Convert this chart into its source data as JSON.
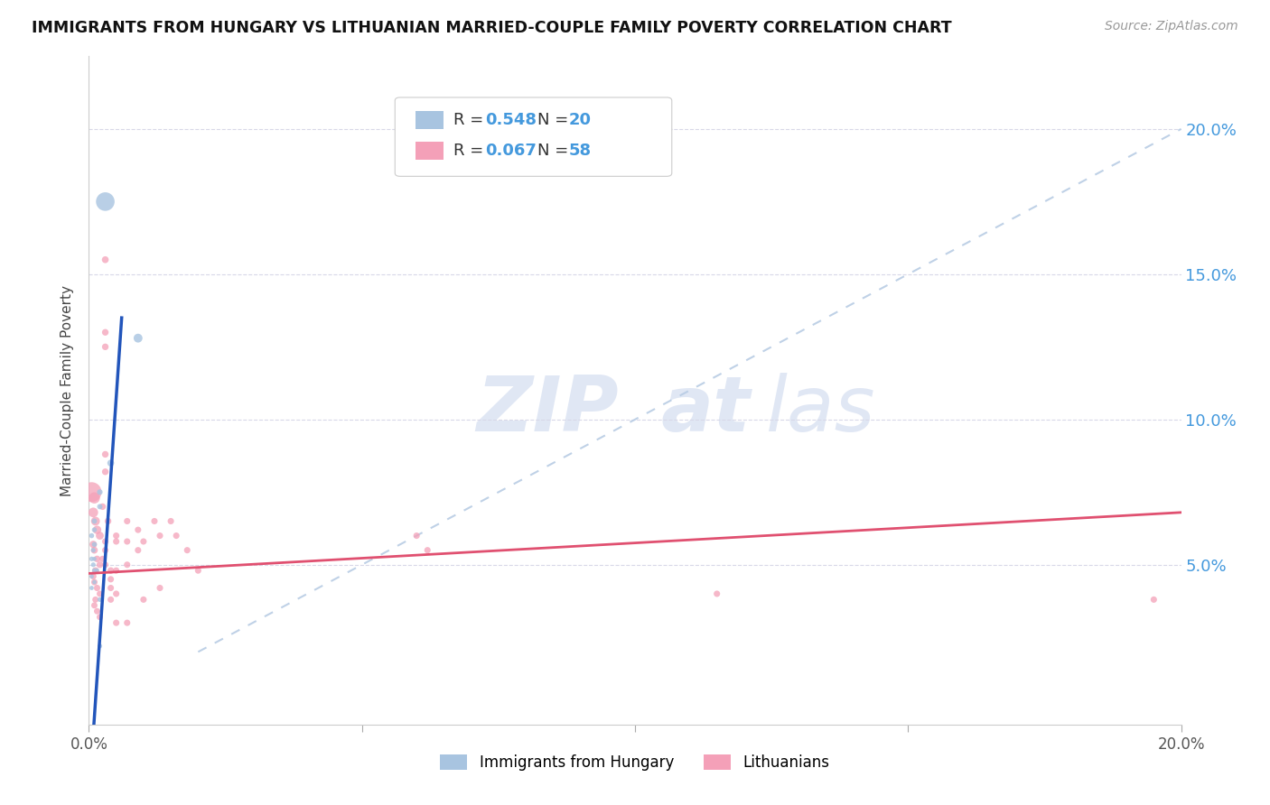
{
  "title": "IMMIGRANTS FROM HUNGARY VS LITHUANIAN MARRIED-COUPLE FAMILY POVERTY CORRELATION CHART",
  "source": "Source: ZipAtlas.com",
  "ylabel": "Married-Couple Family Poverty",
  "xlim": [
    0.0,
    0.2
  ],
  "ylim": [
    -0.005,
    0.225
  ],
  "yticks": [
    0.0,
    0.05,
    0.1,
    0.15,
    0.2
  ],
  "xticks": [
    0.0,
    0.05,
    0.1,
    0.15,
    0.2
  ],
  "xticklabels": [
    "0.0%",
    "",
    "",
    "",
    "20.0%"
  ],
  "right_yticks": [
    0.05,
    0.1,
    0.15,
    0.2
  ],
  "right_yticklabels": [
    "5.0%",
    "10.0%",
    "15.0%",
    "20.0%"
  ],
  "legend_r1": "0.548",
  "legend_n1": "20",
  "legend_r2": "0.067",
  "legend_n2": "58",
  "hungary_color": "#a8c4e0",
  "lithuanian_color": "#f4a0b8",
  "hungary_line_color": "#2255bb",
  "lithuanian_line_color": "#e05070",
  "diagonal_color": "#b8cce4",
  "watermark_zip_color": "#c8d8ee",
  "watermark_atlas_color": "#c0d4ee",
  "grid_color": "#d8d8e8",
  "background_color": "#ffffff",
  "hungary_points": [
    [
      0.003,
      0.175
    ],
    [
      0.009,
      0.128
    ],
    [
      0.004,
      0.085
    ],
    [
      0.002,
      0.075
    ],
    [
      0.002,
      0.07
    ],
    [
      0.001,
      0.065
    ],
    [
      0.001,
      0.062
    ],
    [
      0.0005,
      0.06
    ],
    [
      0.001,
      0.057
    ],
    [
      0.0008,
      0.055
    ],
    [
      0.0005,
      0.052
    ],
    [
      0.0008,
      0.05
    ],
    [
      0.001,
      0.048
    ],
    [
      0.0005,
      0.046
    ],
    [
      0.001,
      0.044
    ],
    [
      0.0005,
      0.042
    ],
    [
      0.001,
      0.052
    ],
    [
      0.0015,
      0.048
    ],
    [
      0.002,
      0.038
    ],
    [
      0.002,
      0.022
    ]
  ],
  "hungary_sizes": [
    220,
    50,
    30,
    20,
    18,
    18,
    16,
    16,
    16,
    14,
    14,
    14,
    14,
    12,
    12,
    12,
    12,
    12,
    14,
    14
  ],
  "lithuanian_points": [
    [
      0.0005,
      0.075
    ],
    [
      0.001,
      0.073
    ],
    [
      0.0008,
      0.068
    ],
    [
      0.0012,
      0.065
    ],
    [
      0.0015,
      0.062
    ],
    [
      0.002,
      0.06
    ],
    [
      0.0008,
      0.057
    ],
    [
      0.001,
      0.055
    ],
    [
      0.0015,
      0.052
    ],
    [
      0.002,
      0.05
    ],
    [
      0.0012,
      0.048
    ],
    [
      0.0008,
      0.046
    ],
    [
      0.001,
      0.044
    ],
    [
      0.0015,
      0.042
    ],
    [
      0.002,
      0.04
    ],
    [
      0.0012,
      0.038
    ],
    [
      0.001,
      0.036
    ],
    [
      0.0015,
      0.034
    ],
    [
      0.002,
      0.032
    ],
    [
      0.003,
      0.155
    ],
    [
      0.003,
      0.13
    ],
    [
      0.003,
      0.125
    ],
    [
      0.003,
      0.088
    ],
    [
      0.003,
      0.082
    ],
    [
      0.0025,
      0.07
    ],
    [
      0.0035,
      0.065
    ],
    [
      0.003,
      0.058
    ],
    [
      0.003,
      0.055
    ],
    [
      0.0025,
      0.052
    ],
    [
      0.003,
      0.05
    ],
    [
      0.004,
      0.048
    ],
    [
      0.004,
      0.045
    ],
    [
      0.004,
      0.042
    ],
    [
      0.004,
      0.038
    ],
    [
      0.005,
      0.06
    ],
    [
      0.005,
      0.058
    ],
    [
      0.005,
      0.048
    ],
    [
      0.005,
      0.04
    ],
    [
      0.005,
      0.03
    ],
    [
      0.007,
      0.065
    ],
    [
      0.007,
      0.058
    ],
    [
      0.007,
      0.05
    ],
    [
      0.007,
      0.03
    ],
    [
      0.009,
      0.062
    ],
    [
      0.009,
      0.055
    ],
    [
      0.01,
      0.058
    ],
    [
      0.01,
      0.038
    ],
    [
      0.012,
      0.065
    ],
    [
      0.013,
      0.06
    ],
    [
      0.013,
      0.042
    ],
    [
      0.015,
      0.065
    ],
    [
      0.016,
      0.06
    ],
    [
      0.018,
      0.055
    ],
    [
      0.02,
      0.048
    ],
    [
      0.06,
      0.06
    ],
    [
      0.062,
      0.055
    ],
    [
      0.115,
      0.04
    ],
    [
      0.195,
      0.038
    ]
  ],
  "lithuanian_sizes": [
    250,
    80,
    60,
    50,
    45,
    40,
    35,
    30,
    28,
    28,
    28,
    26,
    26,
    26,
    25,
    25,
    25,
    25,
    25,
    30,
    28,
    28,
    28,
    28,
    28,
    28,
    26,
    26,
    26,
    26,
    28,
    26,
    26,
    26,
    26,
    26,
    26,
    26,
    26,
    26,
    26,
    26,
    26,
    26,
    26,
    26,
    26,
    26,
    26,
    26,
    26,
    26,
    26,
    26,
    26,
    26,
    26,
    26
  ]
}
